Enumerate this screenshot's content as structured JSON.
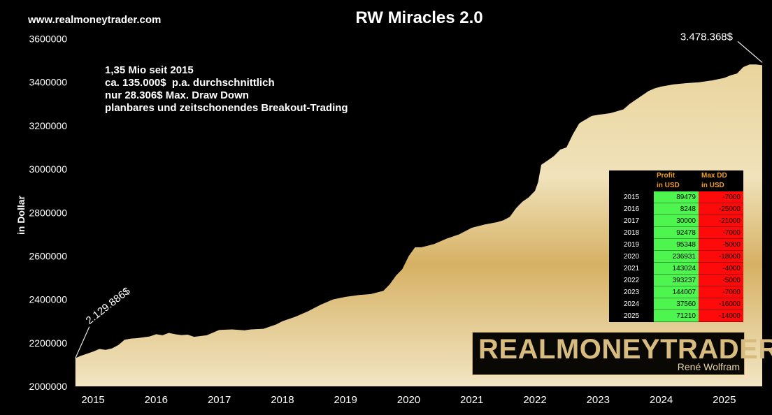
{
  "header": {
    "site": "www.realmoneytrader.com",
    "title": "RW Miracles 2.0"
  },
  "notes": [
    "1,35 Mio seit 2015",
    "ca. 135.000$  p.a. durchschnittlich",
    "nur 28.306$ Max. Draw Down",
    "planbares und zeitschonendes Breakout-Trading"
  ],
  "logo": {
    "main": "REALMONEYTRADER",
    "sub": "René Wolfram"
  },
  "table": {
    "headers": [
      "",
      "Profit\nin USD",
      "Max DD\nin USD"
    ],
    "rows": [
      [
        "2015",
        "89479",
        "-7000"
      ],
      [
        "2016",
        "8248",
        "-25000"
      ],
      [
        "2017",
        "30000",
        "-21000"
      ],
      [
        "2018",
        "92478",
        "-7000"
      ],
      [
        "2019",
        "95348",
        "-5000"
      ],
      [
        "2020",
        "236931",
        "-18000"
      ],
      [
        "2021",
        "143024",
        "-4000"
      ],
      [
        "2022",
        "393237",
        "-5000"
      ],
      [
        "2023",
        "144007",
        "-7000"
      ],
      [
        "2024",
        "37560",
        "-16000"
      ],
      [
        "2025",
        "71210",
        "-14000"
      ]
    ]
  },
  "colors": {
    "fill_light": "#efe0b4",
    "fill_mid": "#d7b26a",
    "profit": "#4ff54f",
    "maxdd": "#ff0a0a",
    "header_text": "#f0a020"
  },
  "chart_data": {
    "type": "area",
    "title": "RW Miracles 2.0",
    "ylabel": "in Dollar",
    "xlabel": "",
    "ylim": [
      2000000,
      3650000
    ],
    "yticks": [
      2000000,
      2200000,
      2400000,
      2600000,
      2800000,
      3000000,
      3200000,
      3400000,
      3600000
    ],
    "ytick_labels": [
      "2000000",
      "2200000",
      "2400000",
      "2600000",
      "2800000",
      "3000000",
      "3200000",
      "3400000",
      "3600000"
    ],
    "xticks": [
      "2015",
      "2016",
      "2017",
      "2018",
      "2019",
      "2020",
      "2021",
      "2022",
      "2023",
      "2024",
      "2025"
    ],
    "xlim": [
      2014.7,
      2025.6
    ],
    "grid": false,
    "annotations": [
      {
        "text": "2.129.886$",
        "x": 2014.72,
        "y": 2129886
      },
      {
        "text": "3.478.368$",
        "x": 2025.6,
        "y": 3478368
      }
    ],
    "series": [
      {
        "x": [
          2014.72,
          2014.8,
          2014.9,
          2015.0,
          2015.1,
          2015.2,
          2015.3,
          2015.4,
          2015.5,
          2015.6,
          2015.7,
          2015.8,
          2015.9,
          2016.0,
          2016.1,
          2016.2,
          2016.3,
          2016.4,
          2016.5,
          2016.6,
          2016.8,
          2017.0,
          2017.2,
          2017.4,
          2017.5,
          2017.7,
          2017.9,
          2018.0,
          2018.2,
          2018.4,
          2018.6,
          2018.8,
          2019.0,
          2019.2,
          2019.4,
          2019.6,
          2019.7,
          2019.8,
          2019.9,
          2020.0,
          2020.05,
          2020.1,
          2020.2,
          2020.4,
          2020.6,
          2020.8,
          2021.0,
          2021.2,
          2021.4,
          2021.5,
          2021.6,
          2021.7,
          2021.8,
          2021.9,
          2022.0,
          2022.05,
          2022.1,
          2022.2,
          2022.3,
          2022.4,
          2022.5,
          2022.6,
          2022.7,
          2022.75,
          2022.8,
          2022.9,
          2023.0,
          2023.2,
          2023.4,
          2023.5,
          2023.6,
          2023.7,
          2023.8,
          2023.9,
          2024.0,
          2024.2,
          2024.4,
          2024.6,
          2024.8,
          2025.0,
          2025.1,
          2025.2,
          2025.3,
          2025.4,
          2025.5,
          2025.6
        ],
        "y": [
          2129886,
          2140000,
          2150000,
          2160000,
          2172000,
          2168000,
          2175000,
          2190000,
          2215000,
          2220000,
          2222000,
          2226000,
          2230000,
          2240000,
          2235000,
          2246000,
          2240000,
          2236000,
          2238000,
          2228000,
          2235000,
          2260000,
          2262000,
          2258000,
          2262000,
          2265000,
          2285000,
          2300000,
          2320000,
          2345000,
          2375000,
          2400000,
          2412000,
          2420000,
          2425000,
          2440000,
          2470000,
          2510000,
          2540000,
          2600000,
          2620000,
          2640000,
          2640000,
          2655000,
          2680000,
          2700000,
          2730000,
          2745000,
          2756000,
          2765000,
          2780000,
          2820000,
          2850000,
          2870000,
          2900000,
          2940000,
          3020000,
          3040000,
          3060000,
          3090000,
          3100000,
          3160000,
          3210000,
          3220000,
          3228000,
          3245000,
          3250000,
          3258000,
          3275000,
          3300000,
          3320000,
          3340000,
          3360000,
          3372000,
          3380000,
          3390000,
          3396000,
          3400000,
          3408000,
          3420000,
          3432000,
          3440000,
          3470000,
          3482000,
          3482000,
          3478368
        ]
      }
    ]
  }
}
